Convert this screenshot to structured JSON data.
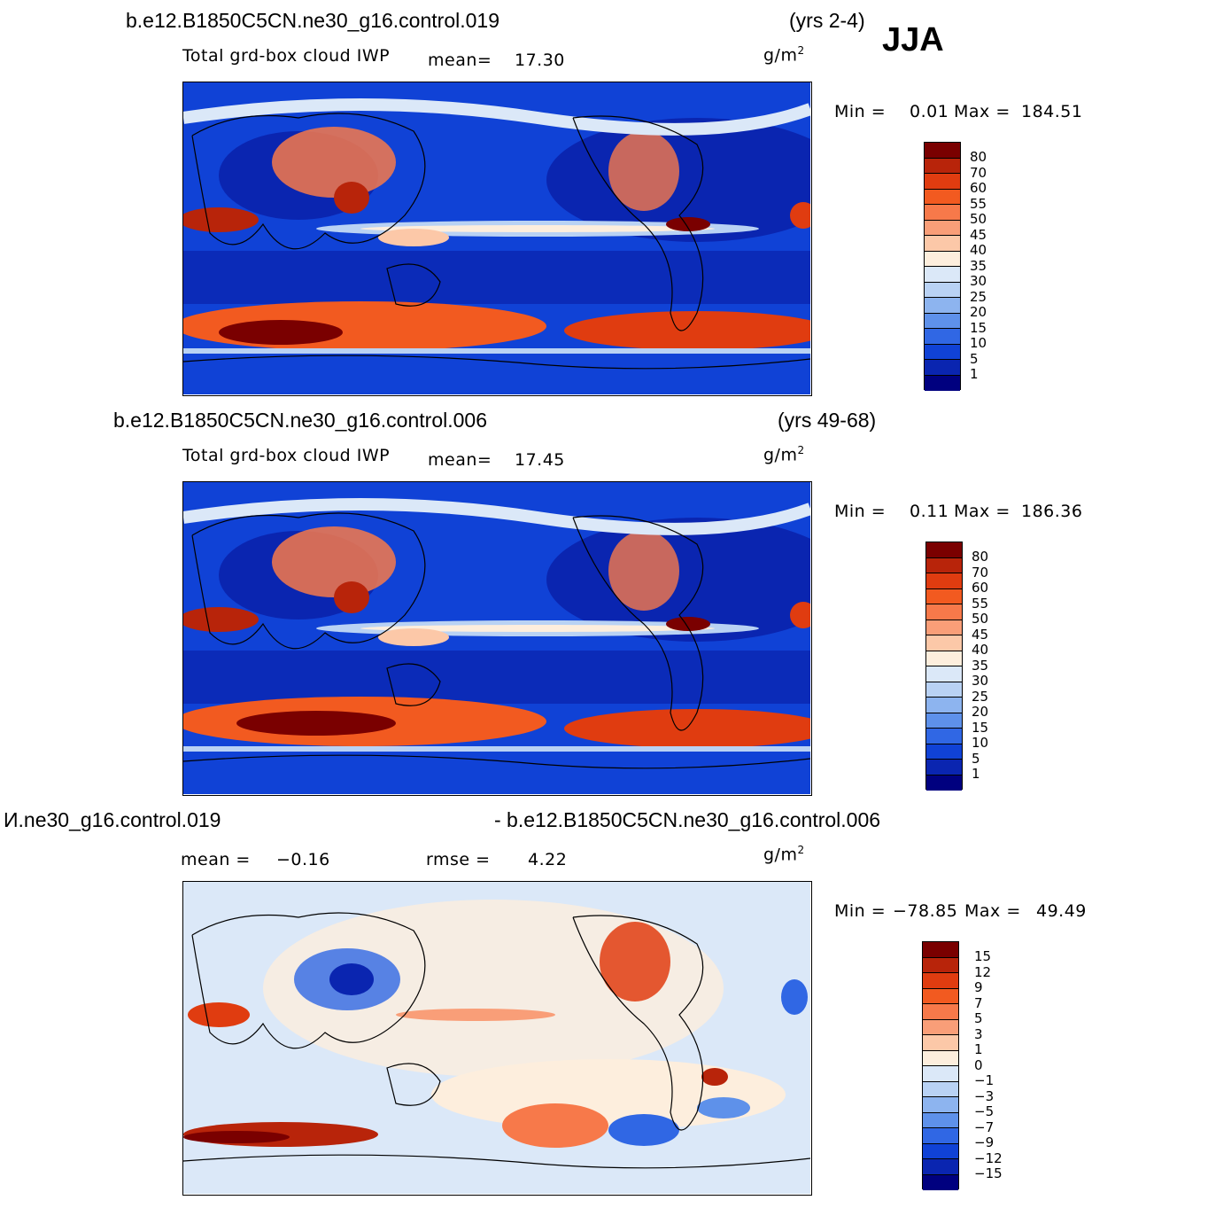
{
  "season": "JJA",
  "panels": [
    {
      "case": "b.e12.B1850C5CN.ne30_g16.control.019",
      "years": "(yrs 2-4)",
      "variable": "Total grd-box cloud IWP",
      "mean_label": "mean=",
      "mean_value": "17.30",
      "units": "g/m",
      "units_exp": "2",
      "min_label": "Min =",
      "min_value": "0.01",
      "max_label": "Max =",
      "max_value": "184.51",
      "colorbar": {
        "labels": [
          "80",
          "70",
          "60",
          "55",
          "50",
          "45",
          "40",
          "35",
          "30",
          "25",
          "20",
          "15",
          "10",
          "5",
          "1"
        ],
        "colors": [
          "#7a0000",
          "#b8240a",
          "#e03c10",
          "#f25a20",
          "#f7794a",
          "#f99e78",
          "#fcc8a8",
          "#fdeedd",
          "#dbe8f8",
          "#b9d2f4",
          "#8db4ef",
          "#5e91ea",
          "#3067e4",
          "#1042d6",
          "#0a25b0",
          "#00007f"
        ]
      }
    },
    {
      "case": "b.e12.B1850C5CN.ne30_g16.control.006",
      "years": "(yrs 49-68)",
      "variable": "Total grd-box cloud IWP",
      "mean_label": "mean=",
      "mean_value": "17.45",
      "units": "g/m",
      "units_exp": "2",
      "min_label": "Min =",
      "min_value": "0.11",
      "max_label": "Max =",
      "max_value": "186.36",
      "colorbar": {
        "labels": [
          "80",
          "70",
          "60",
          "55",
          "50",
          "45",
          "40",
          "35",
          "30",
          "25",
          "20",
          "15",
          "10",
          "5",
          "1"
        ],
        "colors": [
          "#7a0000",
          "#b8240a",
          "#e03c10",
          "#f25a20",
          "#f7794a",
          "#f99e78",
          "#fcc8a8",
          "#fdeedd",
          "#dbe8f8",
          "#b9d2f4",
          "#8db4ef",
          "#5e91ea",
          "#3067e4",
          "#1042d6",
          "#0a25b0",
          "#00007f"
        ]
      }
    },
    {
      "case": "И.ne30_g16.control.019",
      "case_right": "- b.e12.B1850C5CN.ne30_g16.control.006",
      "mean_label": "mean =",
      "mean_value": "−0.16",
      "rmse_label": "rmse =",
      "rmse_value": "4.22",
      "units": "g/m",
      "units_exp": "2",
      "min_label": "Min =",
      "min_value": "−78.85",
      "max_label": "Max =",
      "max_value": "49.49",
      "colorbar": {
        "labels": [
          "15",
          "12",
          "9",
          "7",
          "5",
          "3",
          "1",
          "0",
          "−1",
          "−3",
          "−5",
          "−7",
          "−9",
          "−12",
          "−15"
        ],
        "colors": [
          "#7a0000",
          "#b8240a",
          "#e03c10",
          "#f25a20",
          "#f7794a",
          "#f99e78",
          "#fcc8a8",
          "#fdeedd",
          "#dbe8f8",
          "#b9d2f4",
          "#8db4ef",
          "#5e91ea",
          "#3067e4",
          "#1042d6",
          "#0a25b0",
          "#00007f"
        ]
      }
    }
  ]
}
